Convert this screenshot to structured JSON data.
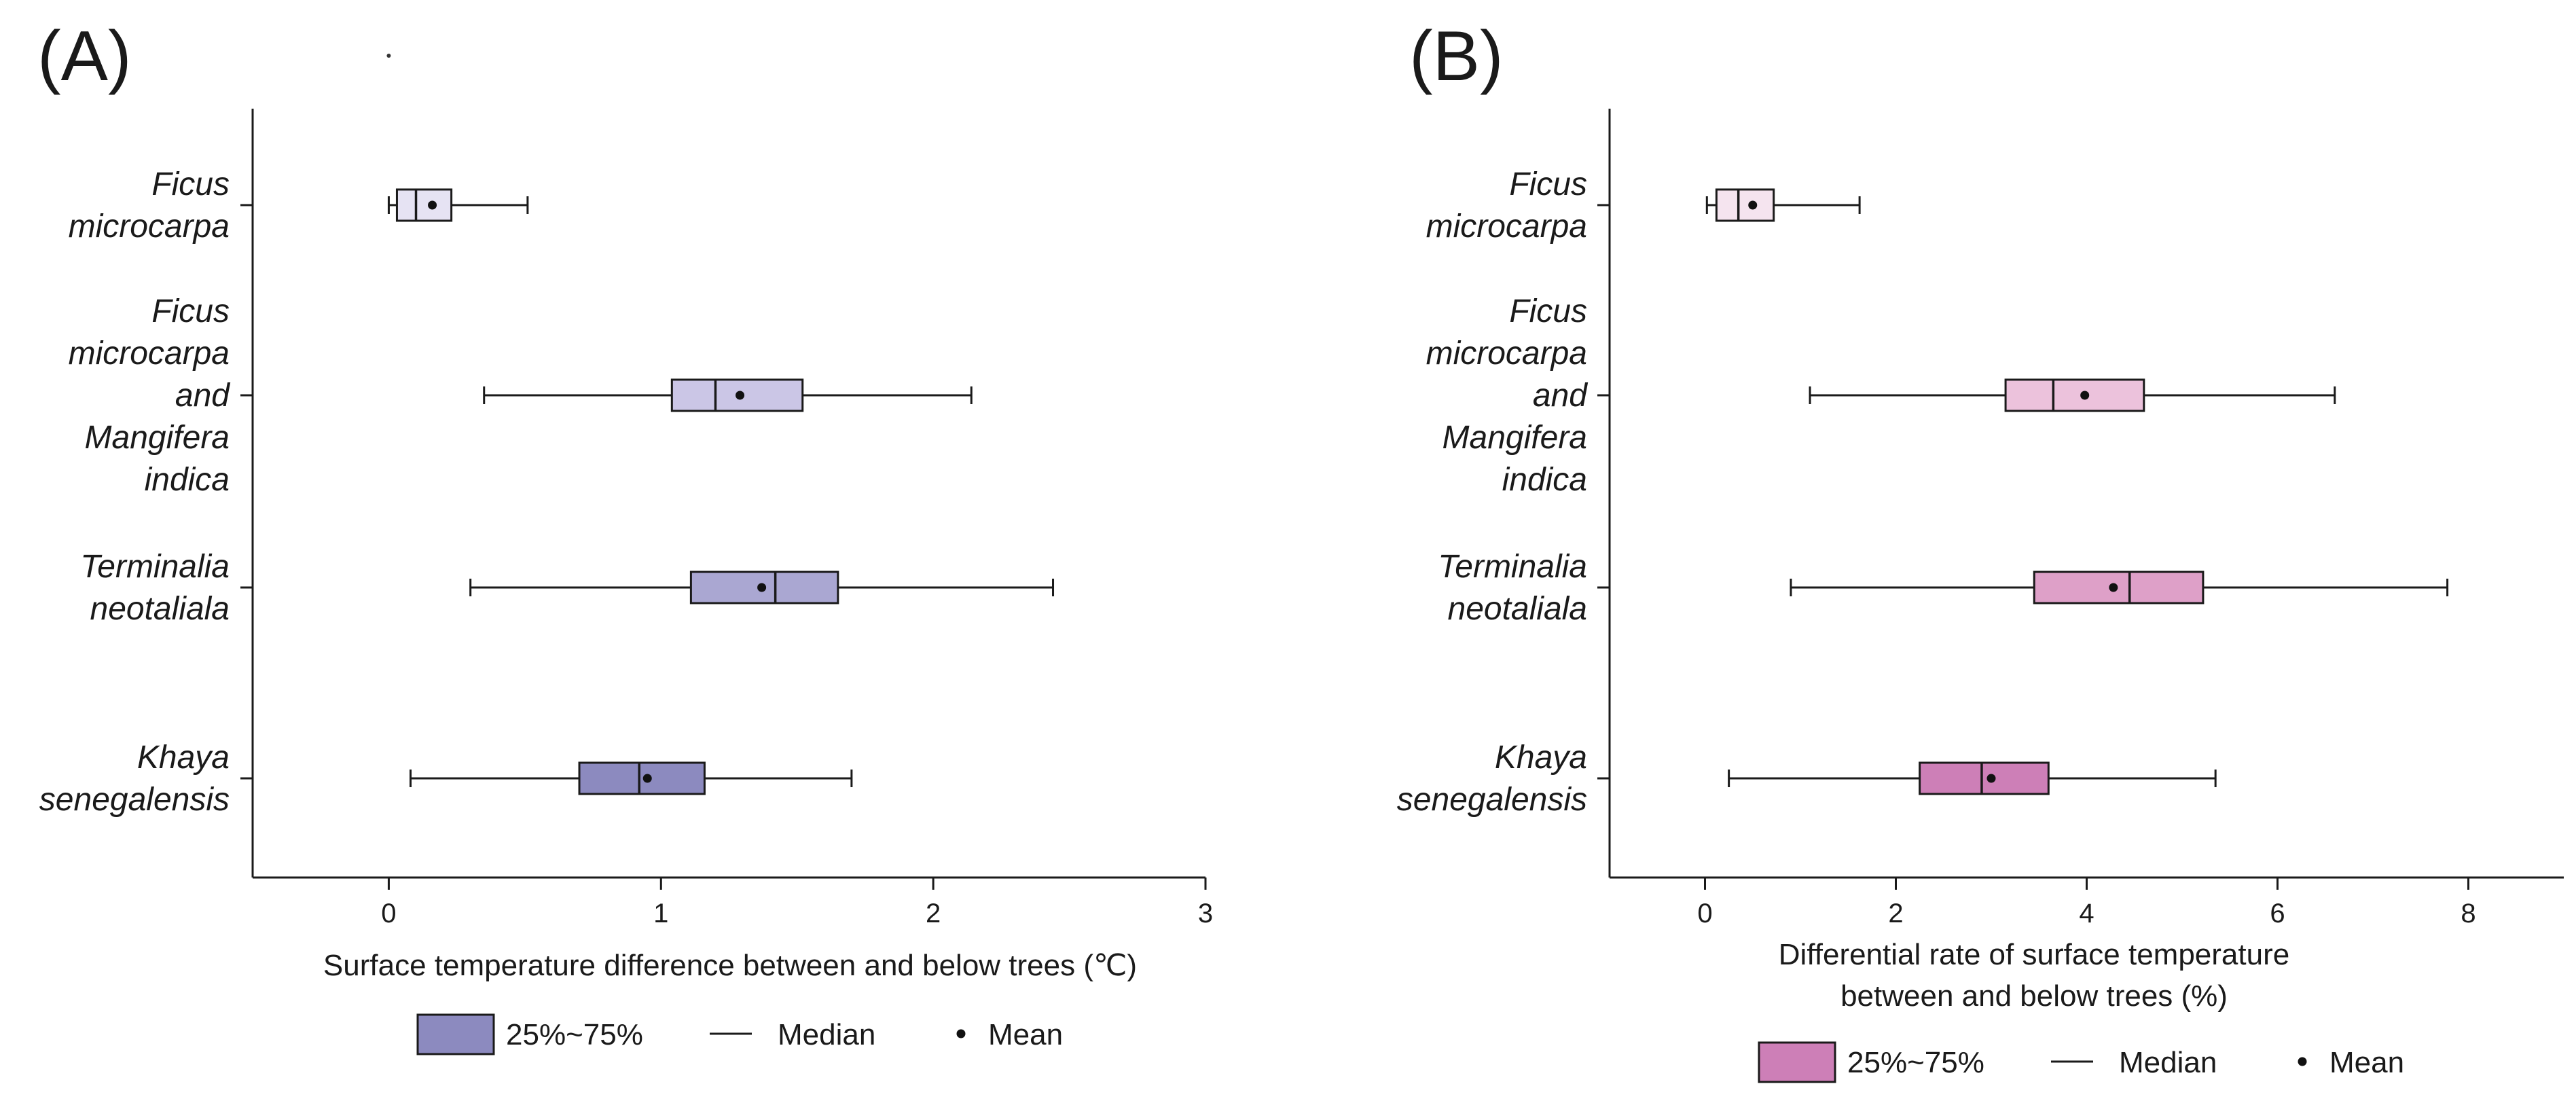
{
  "chart_data": [
    {
      "type": "box",
      "panel_label": "(A)",
      "categories": [
        [
          "Ficus",
          "microcarpa"
        ],
        [
          "Ficus",
          "microcarpa",
          "and",
          "Mangifera",
          "indica"
        ],
        [
          "Terminalia",
          "neotaliala"
        ],
        [
          "Khaya",
          "senegalensis"
        ]
      ],
      "boxes": [
        {
          "whisker_low": 0.0,
          "q1": 0.03,
          "median": 0.1,
          "q3": 0.23,
          "whisker_high": 0.51,
          "mean": 0.16,
          "color": "#e6e3f3"
        },
        {
          "whisker_low": 0.35,
          "q1": 1.04,
          "median": 1.2,
          "q3": 1.52,
          "whisker_high": 2.14,
          "mean": 1.29,
          "color": "#cbc6e6"
        },
        {
          "whisker_low": 0.3,
          "q1": 1.11,
          "median": 1.42,
          "q3": 1.65,
          "whisker_high": 2.44,
          "mean": 1.37,
          "color": "#aaa7d2"
        },
        {
          "whisker_low": 0.08,
          "q1": 0.7,
          "median": 0.92,
          "q3": 1.16,
          "whisker_high": 1.7,
          "mean": 0.95,
          "color": "#8c8abf"
        }
      ],
      "xlim": [
        -0.5,
        3
      ],
      "xticks": [
        0,
        1,
        2,
        3
      ],
      "tick_labels": [
        "0",
        "1",
        "2",
        "3"
      ],
      "xlabel": [
        "Surface temperature difference between and below trees (℃)"
      ],
      "ylabel": "",
      "legend": {
        "box_label": "25%~75%",
        "median_label": "Median",
        "mean_label": "Mean",
        "box_color": "#8c8abf",
        "placement": "bottom"
      },
      "stray_point": {
        "x": 0,
        "y": 4.9
      }
    },
    {
      "type": "box",
      "panel_label": "(B)",
      "categories": [
        [
          "Ficus",
          "microcarpa"
        ],
        [
          "Ficus",
          "microcarpa",
          "and",
          "Mangifera",
          "indica"
        ],
        [
          "Terminalia",
          "neotaliala"
        ],
        [
          "Khaya",
          "senegalensis"
        ]
      ],
      "boxes": [
        {
          "whisker_low": 0.02,
          "q1": 0.12,
          "median": 0.35,
          "q3": 0.72,
          "whisker_high": 1.62,
          "mean": 0.5,
          "color": "#f5e4ef"
        },
        {
          "whisker_low": 1.1,
          "q1": 3.15,
          "median": 3.65,
          "q3": 4.6,
          "whisker_high": 6.6,
          "mean": 3.98,
          "color": "#ecc2dc"
        },
        {
          "whisker_low": 0.9,
          "q1": 3.45,
          "median": 4.45,
          "q3": 5.22,
          "whisker_high": 7.78,
          "mean": 4.28,
          "color": "#dea0c8"
        },
        {
          "whisker_low": 0.25,
          "q1": 2.25,
          "median": 2.9,
          "q3": 3.6,
          "whisker_high": 5.35,
          "mean": 3.0,
          "color": "#cd7fb7"
        }
      ],
      "xlim": [
        -1,
        9
      ],
      "xticks": [
        0,
        2,
        4,
        6,
        8
      ],
      "tick_labels": [
        "0",
        "2",
        "4",
        "6",
        "8"
      ],
      "xlabel": [
        "Differential rate of surface temperature",
        "between and below trees (%)"
      ],
      "ylabel": "",
      "legend": {
        "box_label": "25%~75%",
        "median_label": "Median",
        "mean_label": "Mean",
        "box_color": "#cd7fb7",
        "placement": "bottom"
      }
    }
  ]
}
